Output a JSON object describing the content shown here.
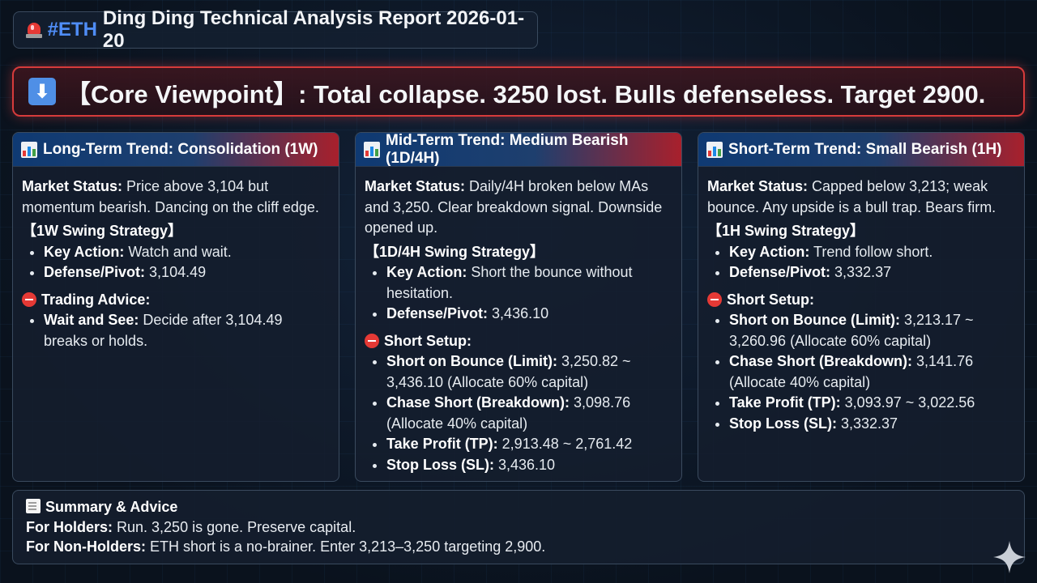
{
  "header": {
    "hashtag": "#ETH",
    "title": "Ding Ding Technical Analysis Report 2026-01-20",
    "icon": "siren-icon"
  },
  "core": {
    "icon": "down-arrow-icon",
    "text": "【Core Viewpoint】: Total collapse. 3250 lost. Bulls defenseless. Target 2900."
  },
  "panels": [
    {
      "title": "Long-Term Trend: Consolidation (1W)",
      "status_label": "Market Status:",
      "status_text": " Price above 3,104 but momentum bearish. Dancing on the cliff edge.",
      "strategy_title": "【1W Swing Strategy】",
      "strategy_items": [
        {
          "label": "Key Action:",
          "value": " Watch and wait."
        },
        {
          "label": "Defense/Pivot:",
          "value": " 3,104.49"
        }
      ],
      "advice_title": "Trading Advice:",
      "advice_items": [
        {
          "label": "Wait and See:",
          "value": " Decide after 3,104.49 breaks or holds."
        }
      ]
    },
    {
      "title": "Mid-Term Trend: Medium Bearish (1D/4H)",
      "status_label": "Market Status:",
      "status_text": " Daily/4H broken below MAs and 3,250. Clear breakdown signal. Downside opened up.",
      "strategy_title": "【1D/4H Swing Strategy】",
      "strategy_items": [
        {
          "label": "Key Action:",
          "value": " Short the bounce without hesitation."
        },
        {
          "label": "Defense/Pivot:",
          "value": " 3,436.10"
        }
      ],
      "advice_title": "Short Setup:",
      "advice_items": [
        {
          "label": "Short on Bounce (Limit):",
          "value": " 3,250.82 ~ 3,436.10 (Allocate 60% capital)"
        },
        {
          "label": "Chase Short (Breakdown):",
          "value": " 3,098.76 (Allocate 40% capital)"
        },
        {
          "label": "Take Profit (TP):",
          "value": " 2,913.48 ~ 2,761.42"
        },
        {
          "label": "Stop Loss (SL):",
          "value": " 3,436.10"
        }
      ]
    },
    {
      "title": "Short-Term Trend: Small Bearish (1H)",
      "status_label": "Market Status:",
      "status_text": " Capped below 3,213; weak bounce. Any upside is a bull trap. Bears firm.",
      "strategy_title": "【1H Swing Strategy】",
      "strategy_items": [
        {
          "label": "Key Action:",
          "value": " Trend follow short."
        },
        {
          "label": "Defense/Pivot:",
          "value": " 3,332.37"
        }
      ],
      "advice_title": "Short Setup:",
      "advice_items": [
        {
          "label": "Short on Bounce (Limit):",
          "value": " 3,213.17 ~ 3,260.96 (Allocate 60% capital)"
        },
        {
          "label": "Chase Short (Breakdown):",
          "value": " 3,141.76 (Allocate 40% capital)"
        },
        {
          "label": "Take Profit (TP):",
          "value": " 3,093.97 ~ 3,022.56"
        },
        {
          "label": "Stop Loss (SL):",
          "value": " 3,332.37"
        }
      ]
    }
  ],
  "summary": {
    "title": "Summary & Advice",
    "holders_label": "For Holders:",
    "holders_text": " Run. 3,250 is gone. Preserve capital.",
    "nonholders_label": "For Non-Holders:",
    "nonholders_text": " ETH short is a no-brainer. Enter 3,213–3,250 targeting 2,900."
  },
  "colors": {
    "accent_blue": "#4f8df7",
    "alert_red": "#d63b3b",
    "background": "#0b1420"
  }
}
